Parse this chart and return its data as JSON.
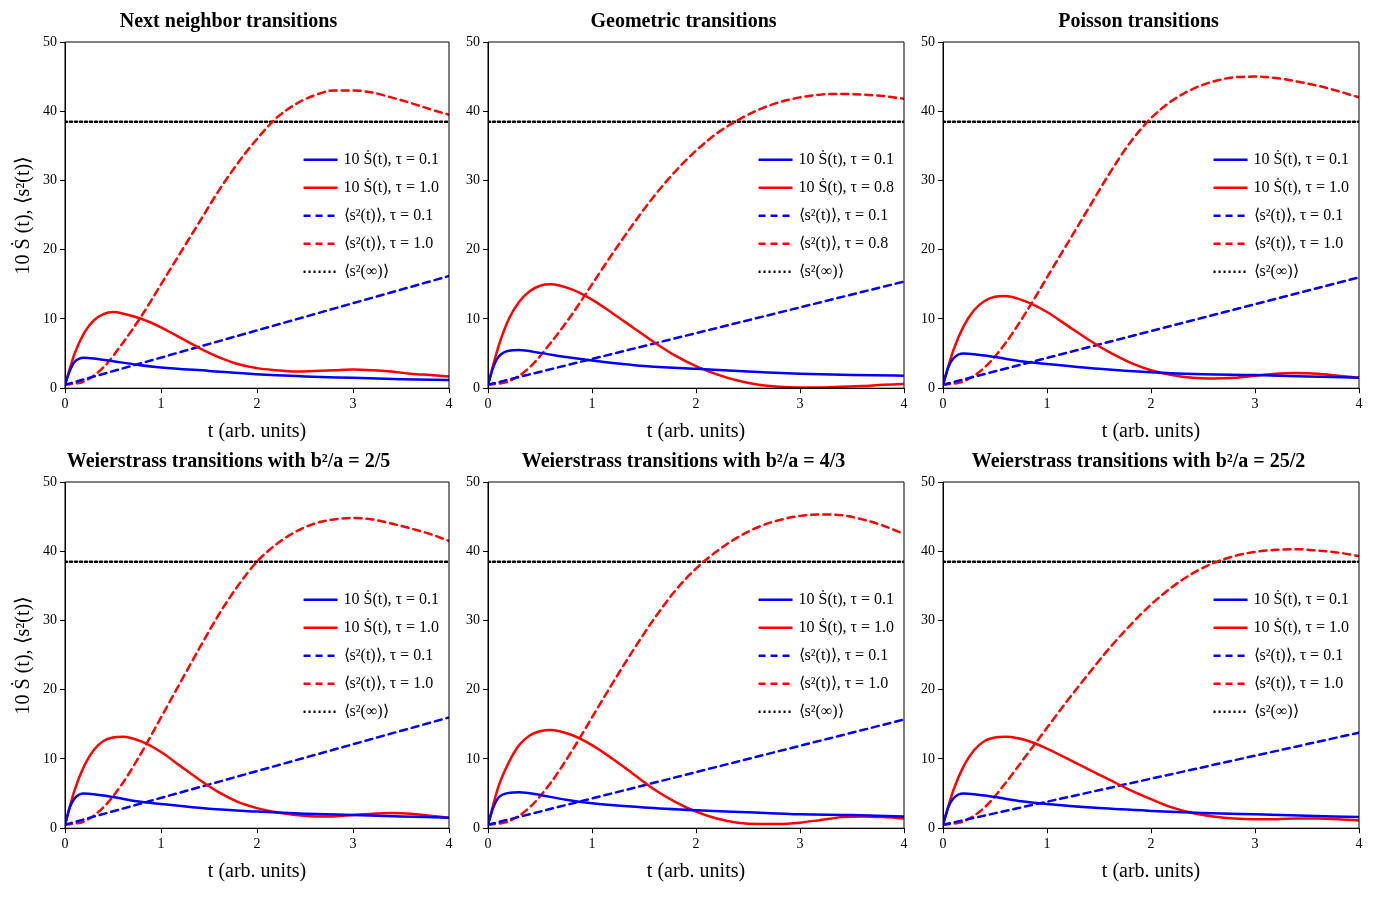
{
  "chart_data": [
    {
      "type": "line",
      "title": "Next neighbor transitions",
      "xlabel": "t (arb. units)",
      "ylabel": "10 Ṡ (t), ⟨s²(t)⟩",
      "xlim": [
        0,
        4
      ],
      "xticks": [
        0,
        1,
        2,
        3,
        4
      ],
      "ylim": [
        0,
        50
      ],
      "yticks": [
        0,
        10,
        20,
        30,
        40,
        50
      ],
      "grid": false,
      "legend": "right",
      "marker": "none",
      "series": [
        {
          "name": "10 Ṡ(t), τ = 0.1",
          "color": "#0000ff",
          "line_style": "solid",
          "x": [
            0,
            0.05,
            0.1,
            0.2,
            0.3,
            0.5,
            0.75,
            1,
            1.5,
            2,
            2.5,
            3,
            3.5,
            4
          ],
          "values": [
            0.5,
            2.5,
            3.8,
            4.4,
            4.3,
            3.9,
            3.4,
            3,
            2.5,
            2,
            1.7,
            1.5,
            1.3,
            1.2
          ]
        },
        {
          "name": "10 Ṡ(t), τ = 1.0",
          "color": "#ff0000",
          "line_style": "solid",
          "x": [
            0,
            0.1,
            0.2,
            0.3,
            0.4,
            0.5,
            0.6,
            0.8,
            1,
            1.2,
            1.4,
            1.6,
            1.8,
            2,
            2.2,
            2.4,
            2.6,
            2.8,
            3,
            3.2,
            3.4,
            3.6,
            3.8,
            4
          ],
          "values": [
            0.5,
            5,
            8,
            9.8,
            10.7,
            11,
            10.8,
            10,
            8.8,
            7.3,
            5.8,
            4.5,
            3.5,
            2.9,
            2.6,
            2.4,
            2.5,
            2.6,
            2.7,
            2.6,
            2.4,
            2.1,
            1.9,
            1.7
          ]
        },
        {
          "name": "⟨s²(t)⟩, τ = 0.1",
          "color": "#0000ff",
          "line_style": "dashed",
          "x": [
            0,
            4
          ],
          "values": [
            0.5,
            16.2
          ]
        },
        {
          "name": "⟨s²(t)⟩, τ = 1.0",
          "color": "#ff0000",
          "line_style": "dashed",
          "x": [
            0,
            0.2,
            0.4,
            0.6,
            0.8,
            1,
            1.2,
            1.4,
            1.6,
            1.8,
            2,
            2.2,
            2.4,
            2.6,
            2.8,
            3,
            3.2,
            3.4,
            3.6,
            3.8,
            4
          ],
          "values": [
            0.5,
            1,
            3,
            6.5,
            10.5,
            15,
            19.5,
            24,
            28.5,
            32.5,
            36,
            39,
            41,
            42.3,
            43,
            43,
            42.7,
            42,
            41.2,
            40.3,
            39.5
          ]
        },
        {
          "name": "⟨s²(∞)⟩",
          "color": "#000000",
          "line_style": "dotted",
          "x": [
            0,
            4
          ],
          "values": [
            38.5,
            38.5
          ]
        }
      ]
    },
    {
      "type": "line",
      "title": "Geometric transitions",
      "xlabel": "t (arb. units)",
      "xlim": [
        0,
        4
      ],
      "xticks": [
        0,
        1,
        2,
        3,
        4
      ],
      "ylim": [
        0,
        50
      ],
      "yticks": [
        0,
        10,
        20,
        30,
        40,
        50
      ],
      "grid": false,
      "legend": "right",
      "marker": "none",
      "series": [
        {
          "name": "10 Ṡ(t), τ = 0.1",
          "color": "#0000ff",
          "line_style": "solid",
          "x": [
            0,
            0.05,
            0.1,
            0.2,
            0.3,
            0.5,
            0.75,
            1,
            1.5,
            2,
            2.5,
            3,
            3.5,
            4
          ],
          "values": [
            0.5,
            3,
            4.5,
            5.4,
            5.5,
            5.1,
            4.5,
            4,
            3.2,
            2.8,
            2.4,
            2.1,
            1.9,
            1.8
          ]
        },
        {
          "name": "10 Ṡ(t), τ = 0.8",
          "color": "#ff0000",
          "line_style": "solid",
          "x": [
            0,
            0.1,
            0.2,
            0.3,
            0.4,
            0.5,
            0.6,
            0.8,
            1,
            1.2,
            1.4,
            1.6,
            1.8,
            2,
            2.2,
            2.4,
            2.6,
            2.8,
            3,
            3.2,
            3.4,
            3.6,
            3.8,
            4
          ],
          "values": [
            0.5,
            6,
            10,
            12.5,
            14,
            14.8,
            15,
            14.3,
            12.8,
            10.8,
            8.7,
            6.6,
            4.7,
            3.2,
            2,
            1.1,
            0.5,
            0.2,
            0.1,
            0.1,
            0.2,
            0.3,
            0.5,
            0.6
          ]
        },
        {
          "name": "⟨s²(t)⟩, τ = 0.1",
          "color": "#0000ff",
          "line_style": "dashed",
          "x": [
            0,
            4
          ],
          "values": [
            0.5,
            15.4
          ]
        },
        {
          "name": "⟨s²(t)⟩, τ = 0.8",
          "color": "#ff0000",
          "line_style": "dashed",
          "x": [
            0,
            0.2,
            0.4,
            0.6,
            0.8,
            1,
            1.2,
            1.4,
            1.6,
            1.8,
            2,
            2.2,
            2.4,
            2.6,
            2.8,
            3,
            3.2,
            3.4,
            3.6,
            3.8,
            4
          ],
          "values": [
            0.5,
            1,
            3,
            6.5,
            10.5,
            15,
            19.5,
            23.8,
            27.8,
            31.3,
            34.3,
            36.8,
            38.7,
            40.2,
            41.3,
            42,
            42.4,
            42.5,
            42.4,
            42.2,
            41.8
          ]
        },
        {
          "name": "⟨s²(∞)⟩",
          "color": "#000000",
          "line_style": "dotted",
          "x": [
            0,
            4
          ],
          "values": [
            38.5,
            38.5
          ]
        }
      ]
    },
    {
      "type": "line",
      "title": "Poisson transitions",
      "xlabel": "t (arb. units)",
      "xlim": [
        0,
        4
      ],
      "xticks": [
        0,
        1,
        2,
        3,
        4
      ],
      "ylim": [
        0,
        50
      ],
      "yticks": [
        0,
        10,
        20,
        30,
        40,
        50
      ],
      "grid": false,
      "legend": "right",
      "marker": "none",
      "series": [
        {
          "name": "10 Ṡ(t), τ = 0.1",
          "color": "#0000ff",
          "line_style": "solid",
          "x": [
            0,
            0.05,
            0.1,
            0.2,
            0.3,
            0.5,
            0.75,
            1,
            1.5,
            2,
            2.5,
            3,
            3.5,
            4
          ],
          "values": [
            0.5,
            3,
            4.3,
            5,
            4.9,
            4.5,
            3.9,
            3.5,
            2.8,
            2.3,
            2,
            1.9,
            1.7,
            1.5
          ]
        },
        {
          "name": "10 Ṡ(t), τ = 1.0",
          "color": "#ff0000",
          "line_style": "solid",
          "x": [
            0,
            0.1,
            0.2,
            0.3,
            0.4,
            0.5,
            0.6,
            0.8,
            1,
            1.2,
            1.4,
            1.6,
            1.8,
            2,
            2.2,
            2.4,
            2.6,
            2.8,
            3,
            3.2,
            3.4,
            3.6,
            3.8,
            4
          ],
          "values": [
            0.5,
            5.5,
            9,
            11.3,
            12.6,
            13.2,
            13.3,
            12.5,
            11,
            9,
            7,
            5.2,
            3.7,
            2.6,
            1.9,
            1.5,
            1.4,
            1.5,
            1.8,
            2.1,
            2.2,
            2.1,
            1.8,
            1.5
          ]
        },
        {
          "name": "⟨s²(t)⟩, τ = 0.1",
          "color": "#0000ff",
          "line_style": "dashed",
          "x": [
            0,
            4
          ],
          "values": [
            0.5,
            16
          ]
        },
        {
          "name": "⟨s²(t)⟩, τ = 1.0",
          "color": "#ff0000",
          "line_style": "dashed",
          "x": [
            0,
            0.2,
            0.4,
            0.6,
            0.8,
            1,
            1.2,
            1.4,
            1.6,
            1.8,
            2,
            2.2,
            2.4,
            2.6,
            2.8,
            3,
            3.2,
            3.4,
            3.6,
            3.8,
            4
          ],
          "values": [
            0.5,
            1,
            3,
            6.5,
            11,
            16,
            21,
            26,
            31,
            35.5,
            39,
            41.5,
            43.2,
            44.3,
            44.9,
            45,
            44.8,
            44.3,
            43.7,
            42.9,
            42
          ]
        },
        {
          "name": "⟨s²(∞)⟩",
          "color": "#000000",
          "line_style": "dotted",
          "x": [
            0,
            4
          ],
          "values": [
            38.5,
            38.5
          ]
        }
      ]
    },
    {
      "type": "line",
      "title": "Weierstrass transitions with b²/a = 2/5",
      "xlabel": "t (arb. units)",
      "ylabel": "10 Ṡ (t), ⟨s²(t)⟩",
      "xlim": [
        0,
        4
      ],
      "xticks": [
        0,
        1,
        2,
        3,
        4
      ],
      "ylim": [
        0,
        50
      ],
      "yticks": [
        0,
        10,
        20,
        30,
        40,
        50
      ],
      "grid": false,
      "legend": "right",
      "marker": "none",
      "series": [
        {
          "name": "10 Ṡ(t), τ = 0.1",
          "color": "#0000ff",
          "line_style": "solid",
          "x": [
            0,
            0.05,
            0.1,
            0.2,
            0.3,
            0.5,
            0.75,
            1,
            1.5,
            2,
            2.5,
            3,
            3.5,
            4
          ],
          "values": [
            0.5,
            3,
            4.3,
            5,
            4.9,
            4.5,
            3.9,
            3.5,
            2.8,
            2.4,
            2.1,
            1.9,
            1.7,
            1.5
          ]
        },
        {
          "name": "10 Ṡ(t), τ = 1.0",
          "color": "#ff0000",
          "line_style": "solid",
          "x": [
            0,
            0.1,
            0.2,
            0.3,
            0.4,
            0.5,
            0.6,
            0.8,
            1,
            1.2,
            1.4,
            1.6,
            1.8,
            2,
            2.2,
            2.4,
            2.6,
            2.8,
            3,
            3.2,
            3.4,
            3.6,
            3.8,
            4
          ],
          "values": [
            0.5,
            5.5,
            9,
            11.3,
            12.6,
            13.1,
            13.2,
            12.5,
            11,
            9,
            7,
            5.2,
            3.8,
            2.9,
            2.3,
            1.9,
            1.7,
            1.7,
            1.9,
            2.1,
            2.2,
            2.1,
            1.8,
            1.5
          ]
        },
        {
          "name": "⟨s²(t)⟩, τ = 0.1",
          "color": "#0000ff",
          "line_style": "dashed",
          "x": [
            0,
            4
          ],
          "values": [
            0.5,
            16
          ]
        },
        {
          "name": "⟨s²(t)⟩, τ = 1.0",
          "color": "#ff0000",
          "line_style": "dashed",
          "x": [
            0,
            0.2,
            0.4,
            0.6,
            0.8,
            1,
            1.2,
            1.4,
            1.6,
            1.8,
            2,
            2.2,
            2.4,
            2.6,
            2.8,
            3,
            3.2,
            3.4,
            3.6,
            3.8,
            4
          ],
          "values": [
            0.5,
            1,
            3,
            6.5,
            11,
            16,
            21,
            26,
            30.8,
            35,
            38.5,
            41,
            42.8,
            44,
            44.6,
            44.8,
            44.6,
            44,
            43.3,
            42.5,
            41.5
          ]
        },
        {
          "name": "⟨s²(∞)⟩",
          "color": "#000000",
          "line_style": "dotted",
          "x": [
            0,
            4
          ],
          "values": [
            38.5,
            38.5
          ]
        }
      ]
    },
    {
      "type": "line",
      "title": "Weierstrass transitions with b²/a = 4/3",
      "xlabel": "t (arb. units)",
      "xlim": [
        0,
        4
      ],
      "xticks": [
        0,
        1,
        2,
        3,
        4
      ],
      "ylim": [
        0,
        50
      ],
      "yticks": [
        0,
        10,
        20,
        30,
        40,
        50
      ],
      "grid": false,
      "legend": "right",
      "marker": "none",
      "series": [
        {
          "name": "10 Ṡ(t), τ = 0.1",
          "color": "#0000ff",
          "line_style": "solid",
          "x": [
            0,
            0.05,
            0.1,
            0.2,
            0.3,
            0.5,
            0.75,
            1,
            1.5,
            2,
            2.5,
            3,
            3.5,
            4
          ],
          "values": [
            0.5,
            3,
            4.4,
            5.1,
            5.2,
            4.8,
            4.1,
            3.6,
            3,
            2.6,
            2.3,
            2,
            1.9,
            1.7
          ]
        },
        {
          "name": "10 Ṡ(t), τ = 1.0",
          "color": "#ff0000",
          "line_style": "solid",
          "x": [
            0,
            0.1,
            0.2,
            0.3,
            0.4,
            0.5,
            0.6,
            0.8,
            1,
            1.2,
            1.4,
            1.6,
            1.8,
            2,
            2.2,
            2.4,
            2.6,
            2.8,
            3,
            3.2,
            3.4,
            3.6,
            3.8,
            4
          ],
          "values": [
            0.5,
            6,
            9.5,
            12,
            13.4,
            14,
            14.2,
            13.5,
            12,
            10,
            7.8,
            5.6,
            3.8,
            2.4,
            1.4,
            0.8,
            0.6,
            0.6,
            0.8,
            1.2,
            1.6,
            1.7,
            1.6,
            1.4
          ]
        },
        {
          "name": "⟨s²(t)⟩, τ = 0.1",
          "color": "#0000ff",
          "line_style": "dashed",
          "x": [
            0,
            4
          ],
          "values": [
            0.5,
            15.7
          ]
        },
        {
          "name": "⟨s²(t)⟩, τ = 1.0",
          "color": "#ff0000",
          "line_style": "dashed",
          "x": [
            0,
            0.2,
            0.4,
            0.6,
            0.8,
            1,
            1.2,
            1.4,
            1.6,
            1.8,
            2,
            2.2,
            2.4,
            2.6,
            2.8,
            3,
            3.2,
            3.4,
            3.6,
            3.8,
            4
          ],
          "values": [
            0.5,
            1,
            3,
            6.5,
            11,
            16,
            21,
            25.8,
            30.3,
            34.3,
            37.5,
            40,
            42,
            43.5,
            44.5,
            45.1,
            45.3,
            45.2,
            44.6,
            43.7,
            42.5
          ]
        },
        {
          "name": "⟨s²(∞)⟩",
          "color": "#000000",
          "line_style": "dotted",
          "x": [
            0,
            4
          ],
          "values": [
            38.5,
            38.5
          ]
        }
      ]
    },
    {
      "type": "line",
      "title": "Weierstrass transitions with b²/a = 25/2",
      "xlabel": "t (arb. units)",
      "xlim": [
        0,
        4
      ],
      "xticks": [
        0,
        1,
        2,
        3,
        4
      ],
      "ylim": [
        0,
        50
      ],
      "yticks": [
        0,
        10,
        20,
        30,
        40,
        50
      ],
      "grid": false,
      "legend": "right",
      "marker": "none",
      "series": [
        {
          "name": "10 Ṡ(t), τ = 0.1",
          "color": "#0000ff",
          "line_style": "solid",
          "x": [
            0,
            0.05,
            0.1,
            0.2,
            0.3,
            0.5,
            0.75,
            1,
            1.5,
            2,
            2.5,
            3,
            3.5,
            4
          ],
          "values": [
            0.5,
            3,
            4.3,
            5,
            4.9,
            4.5,
            3.9,
            3.5,
            2.9,
            2.5,
            2.2,
            2,
            1.8,
            1.6
          ]
        },
        {
          "name": "10 Ṡ(t), τ = 1.0",
          "color": "#ff0000",
          "line_style": "solid",
          "x": [
            0,
            0.1,
            0.2,
            0.3,
            0.4,
            0.5,
            0.6,
            0.8,
            1,
            1.2,
            1.4,
            1.6,
            1.8,
            2,
            2.2,
            2.4,
            2.6,
            2.8,
            3,
            3.2,
            3.4,
            3.6,
            3.8,
            4
          ],
          "values": [
            0.5,
            5.5,
            9,
            11.3,
            12.6,
            13.1,
            13.2,
            12.7,
            11.5,
            10,
            8.5,
            7,
            5.5,
            4.2,
            3,
            2.2,
            1.7,
            1.4,
            1.3,
            1.3,
            1.4,
            1.4,
            1.3,
            1.1
          ]
        },
        {
          "name": "⟨s²(t)⟩, τ = 0.1",
          "color": "#0000ff",
          "line_style": "dashed",
          "x": [
            0,
            4
          ],
          "values": [
            0.5,
            13.8
          ]
        },
        {
          "name": "⟨s²(t)⟩, τ = 1.0",
          "color": "#ff0000",
          "line_style": "dashed",
          "x": [
            0,
            0.2,
            0.4,
            0.6,
            0.8,
            1,
            1.2,
            1.4,
            1.6,
            1.8,
            2,
            2.2,
            2.4,
            2.6,
            2.8,
            3,
            3.2,
            3.4,
            3.6,
            3.8,
            4
          ],
          "values": [
            0.5,
            1,
            3,
            6.5,
            10.5,
            14.5,
            18.5,
            22.3,
            26,
            29.3,
            32.3,
            34.8,
            36.8,
            38.3,
            39.3,
            39.9,
            40.2,
            40.3,
            40.1,
            39.8,
            39.3
          ]
        },
        {
          "name": "⟨s²(∞)⟩",
          "color": "#000000",
          "line_style": "dotted",
          "x": [
            0,
            4
          ],
          "values": [
            38.5,
            38.5
          ]
        }
      ]
    }
  ]
}
